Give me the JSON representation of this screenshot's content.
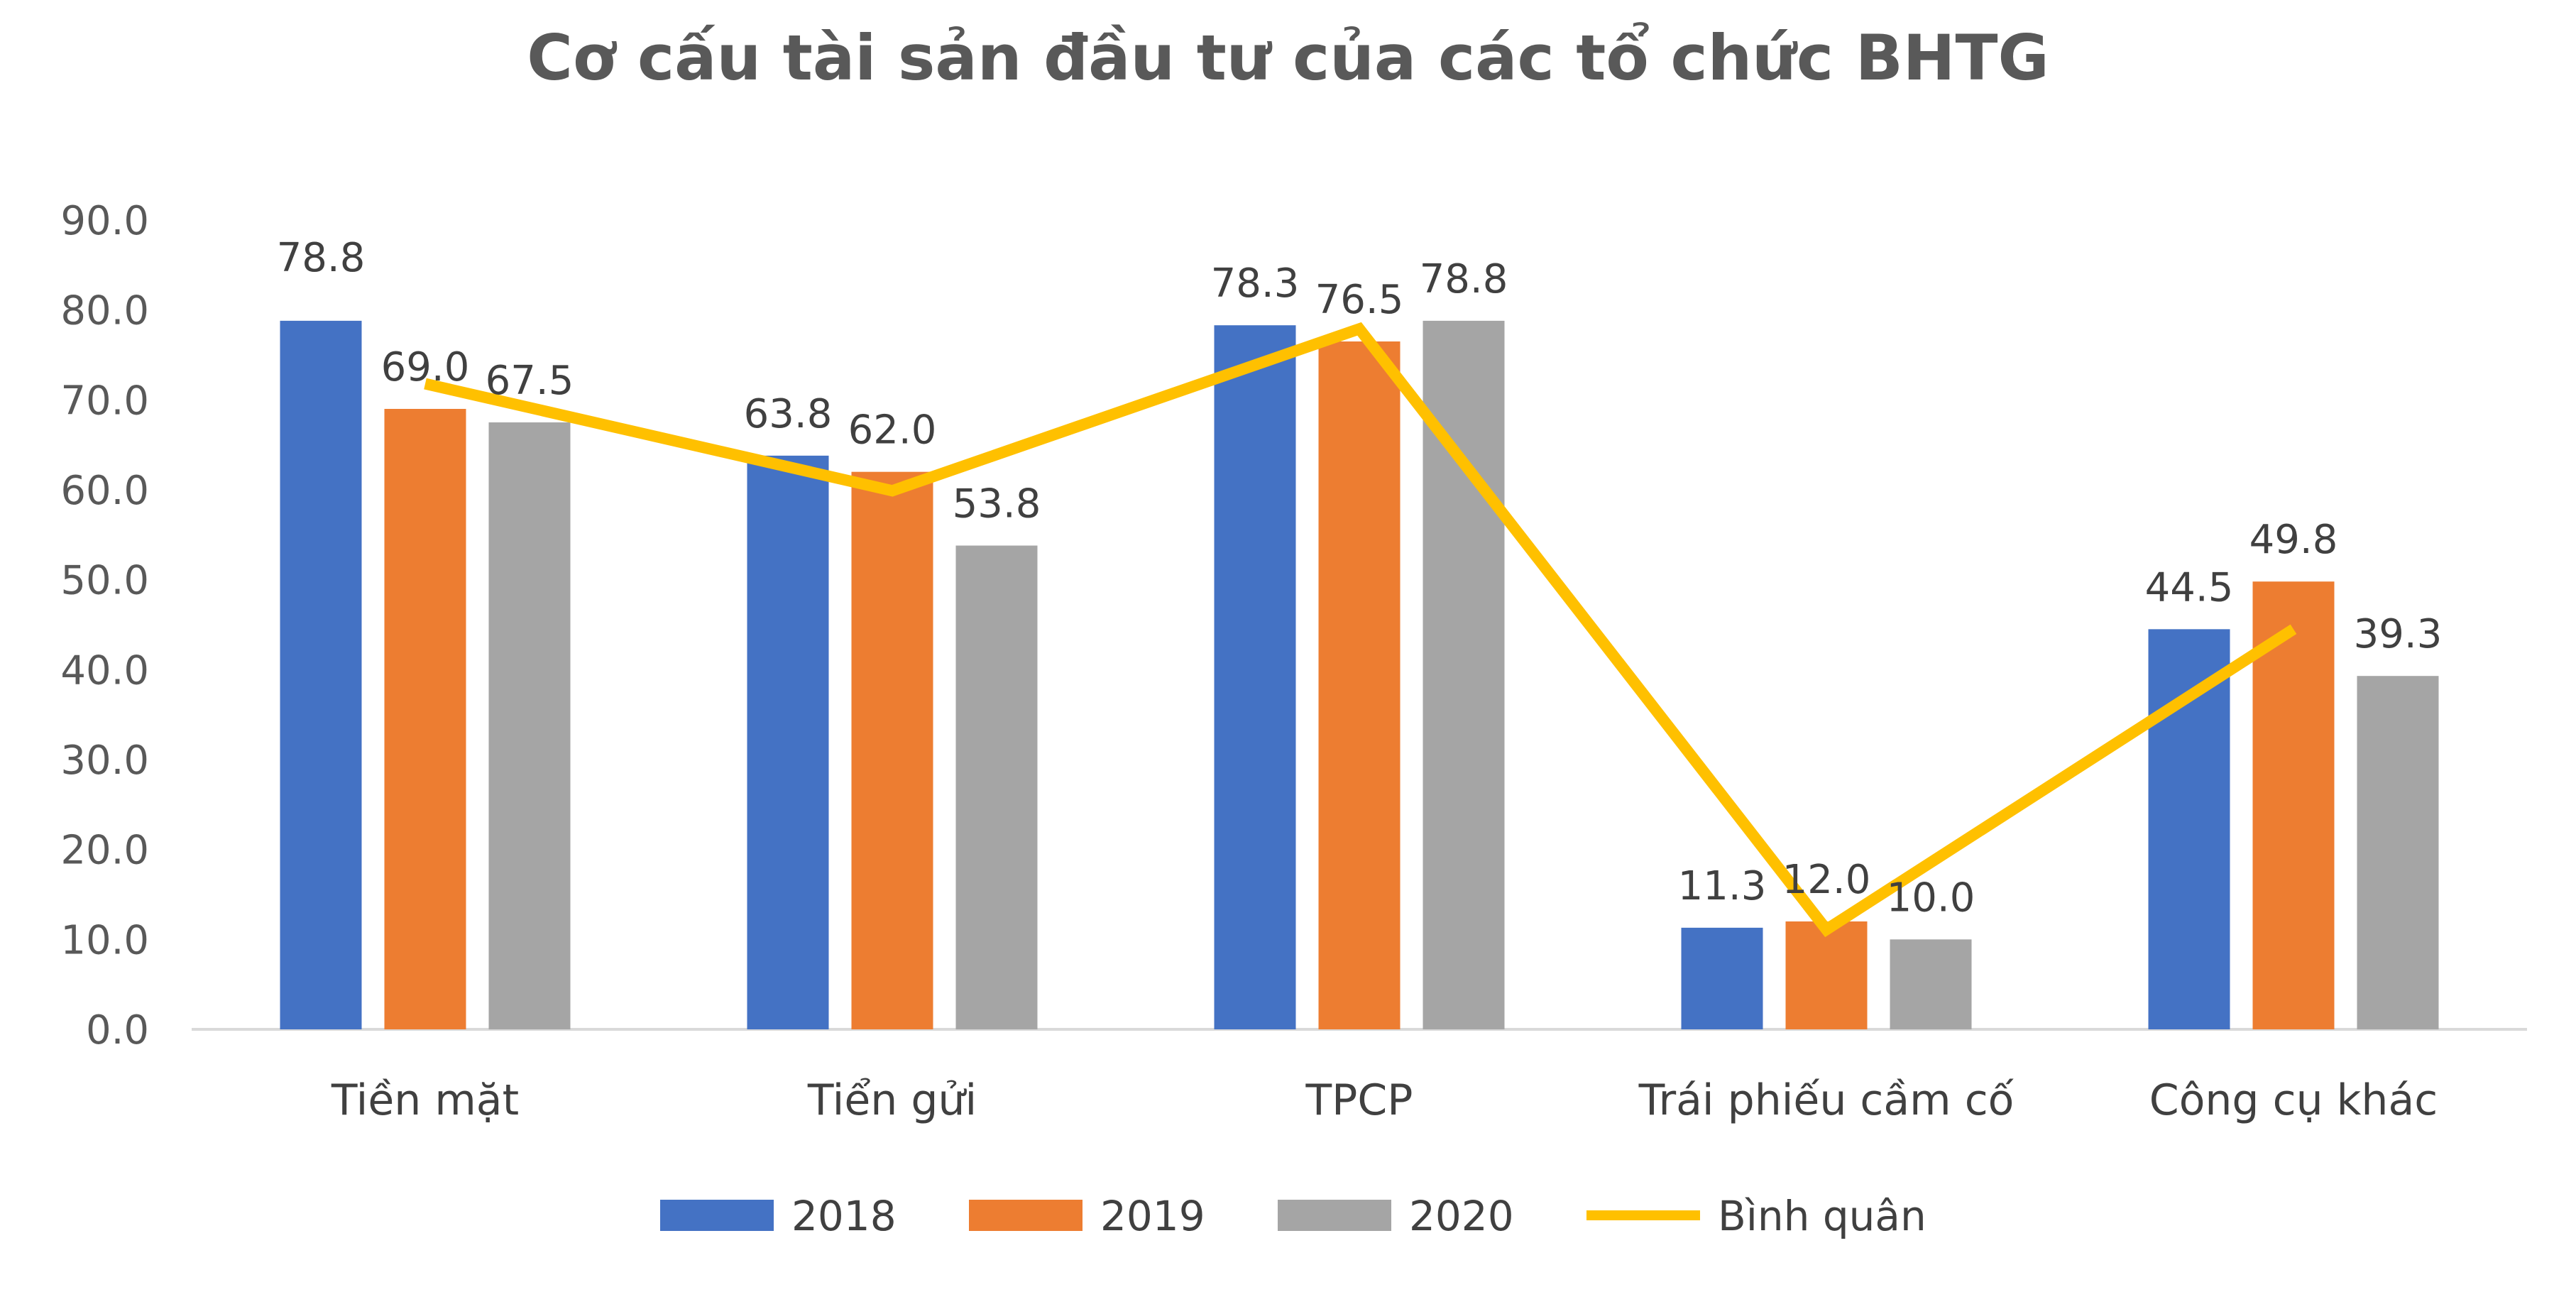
{
  "chart_data": {
    "type": "bar",
    "title": "Cơ cấu tài sản đầu tư của các tổ chức BHTG",
    "xlabel": "",
    "ylabel": "",
    "categories": [
      "Tiền mặt",
      "Tiển gửi",
      "TPCP",
      "Trái phiếu cầm cố",
      "Công cụ khác"
    ],
    "ylim": [
      0,
      90
    ],
    "yticks": [
      "0.0",
      "10.0",
      "20.0",
      "30.0",
      "40.0",
      "50.0",
      "60.0",
      "70.0",
      "80.0",
      "90.0"
    ],
    "grid": false,
    "legend_position": "bottom",
    "series": [
      {
        "name": "2018",
        "type": "bar",
        "color": "#4472C4",
        "values": [
          78.8,
          63.8,
          78.3,
          11.3,
          44.5
        ],
        "labels": [
          "78.8",
          "63.8",
          "78.3",
          "11.3",
          "44.5"
        ]
      },
      {
        "name": "2019",
        "type": "bar",
        "color": "#ED7D31",
        "values": [
          69.0,
          62.0,
          76.5,
          12.0,
          49.8
        ],
        "labels": [
          "69.0",
          "62.0",
          "76.5",
          "12.0",
          "49.8"
        ]
      },
      {
        "name": "2020",
        "type": "bar",
        "color": "#A5A5A5",
        "values": [
          67.5,
          53.8,
          78.8,
          10.0,
          39.3
        ],
        "labels": [
          "67.5",
          "53.8",
          "78.8",
          "10.0",
          "39.3"
        ]
      },
      {
        "name": "Bình quân",
        "type": "line",
        "color": "#FFC000",
        "values": [
          71.8,
          59.9,
          77.9,
          11.1,
          44.5
        ]
      }
    ]
  }
}
